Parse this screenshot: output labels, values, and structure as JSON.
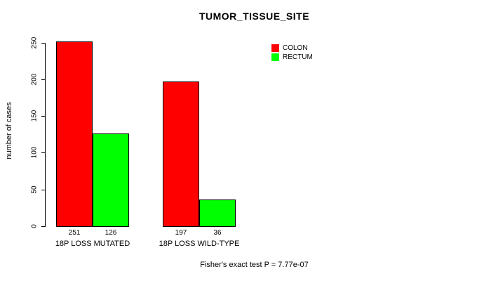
{
  "chart_data": {
    "type": "bar",
    "title": "TUMOR_TISSUE_SITE",
    "xlabel": "",
    "ylabel": "number of cases",
    "ylim": [
      0,
      250
    ],
    "yticks": [
      0,
      50,
      100,
      150,
      200,
      250
    ],
    "categories": [
      "18P LOSS MUTATED",
      "18P LOSS WILD-TYPE"
    ],
    "series": [
      {
        "name": "COLON",
        "color": "#FF0000",
        "values": [
          251,
          197
        ]
      },
      {
        "name": "RECTUM",
        "color": "#00FF00",
        "values": [
          126,
          36
        ]
      }
    ],
    "bar_value_labels": [
      [
        "251",
        "126"
      ],
      [
        "197",
        "36"
      ]
    ],
    "legend_position": "top-right",
    "grid": false,
    "annotation": "Fisher's exact test P = 7.77e-07"
  }
}
